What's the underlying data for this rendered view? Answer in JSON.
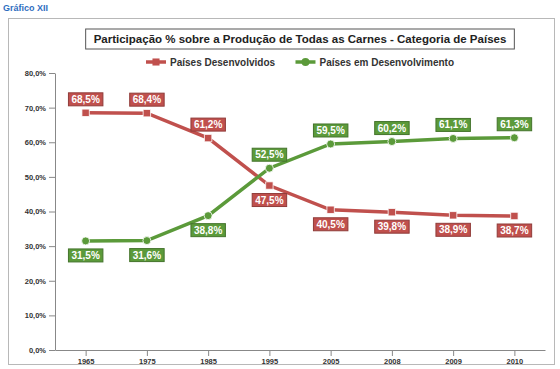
{
  "chart_data": {
    "type": "line",
    "title": "Participação % sobre a Produção de Todas as Carnes - Categoria de Países",
    "annotations": [
      "Gráfico XII"
    ],
    "categories": [
      "1965",
      "1975",
      "1985",
      "1995",
      "2005",
      "2008",
      "2009",
      "2010"
    ],
    "series": [
      {
        "name": "Países Desenvolvidos",
        "color": "#c0504d",
        "marker": "square",
        "values": [
          68.5,
          68.4,
          61.2,
          47.5,
          40.5,
          39.8,
          38.9,
          38.7
        ],
        "value_labels": [
          "68,5%",
          "68,4%",
          "61,2%",
          "47,5%",
          "40,5%",
          "39,8%",
          "38,9%",
          "38,7%"
        ]
      },
      {
        "name": "Países em Desenvolvimento",
        "color": "#5b9a3a",
        "marker": "circle",
        "values": [
          31.5,
          31.6,
          38.8,
          52.5,
          59.5,
          60.2,
          61.1,
          61.3
        ],
        "value_labels": [
          "31,5%",
          "31,6%",
          "38,8%",
          "52,5%",
          "59,5%",
          "60,2%",
          "61,1%",
          "61,3%"
        ]
      }
    ],
    "ylim": [
      0,
      80
    ],
    "yticks": [
      {
        "value": 0,
        "label": "0,0%"
      },
      {
        "value": 10,
        "label": "10,0%"
      },
      {
        "value": 20,
        "label": "20,0%"
      },
      {
        "value": 30,
        "label": "30,0%"
      },
      {
        "value": 40,
        "label": "40,0%"
      },
      {
        "value": 50,
        "label": "50,0%"
      },
      {
        "value": 60,
        "label": "60,0%"
      },
      {
        "value": 70,
        "label": "70,0%"
      },
      {
        "value": 80,
        "label": "80,0%"
      }
    ],
    "grid": false,
    "legend": "top",
    "data_labels": true
  }
}
